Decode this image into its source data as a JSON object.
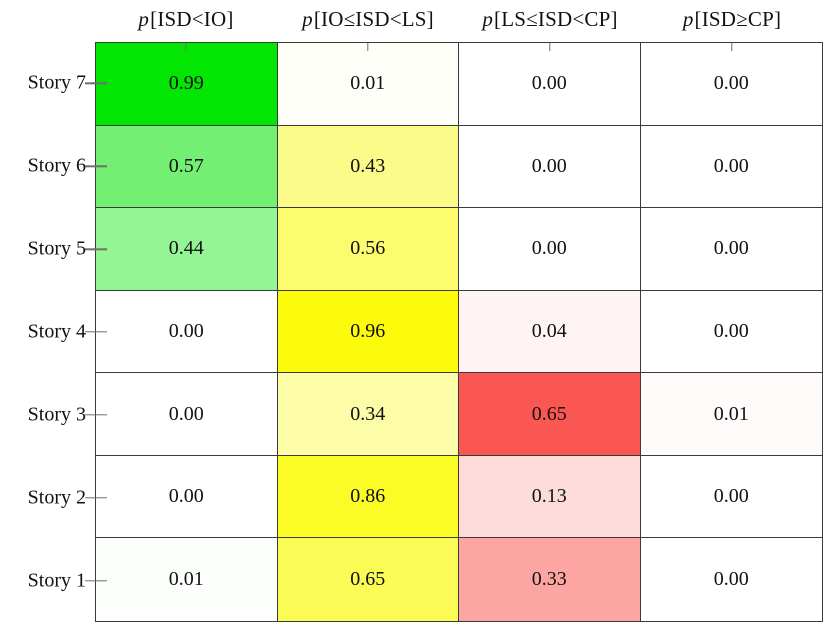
{
  "figure": {
    "background": "#ffffff",
    "grid_line_color": "#3a3a3a",
    "tick_color": "#6f6f6f",
    "text_color": "#111111"
  },
  "chart_data": {
    "type": "heatmap",
    "title": "",
    "columns": [
      {
        "var": "p",
        "condition": "[ISD<IO]"
      },
      {
        "var": "p",
        "condition": "[IO≤ISD<LS]"
      },
      {
        "var": "p",
        "condition": "[LS≤ISD<CP]"
      },
      {
        "var": "p",
        "condition": "[ISD≥CP]"
      }
    ],
    "rows": [
      "Story 7",
      "Story 6",
      "Story 5",
      "Story 4",
      "Story 3",
      "Story 2",
      "Story 1"
    ],
    "values": [
      [
        0.99,
        0.01,
        0.0,
        0.0
      ],
      [
        0.57,
        0.43,
        0.0,
        0.0
      ],
      [
        0.44,
        0.56,
        0.0,
        0.0
      ],
      [
        0.0,
        0.96,
        0.04,
        0.0
      ],
      [
        0.0,
        0.34,
        0.65,
        0.01
      ],
      [
        0.0,
        0.86,
        0.13,
        0.0
      ],
      [
        0.01,
        0.65,
        0.33,
        0.0
      ]
    ],
    "display": [
      [
        "0.99",
        "0.01",
        "0.00",
        "0.00"
      ],
      [
        "0.57",
        "0.43",
        "0.00",
        "0.00"
      ],
      [
        "0.44",
        "0.56",
        "0.00",
        "0.00"
      ],
      [
        "0.00",
        "0.96",
        "0.04",
        "0.00"
      ],
      [
        "0.00",
        "0.34",
        "0.65",
        "0.01"
      ],
      [
        "0.00",
        "0.86",
        "0.13",
        "0.00"
      ],
      [
        "0.01",
        "0.65",
        "0.33",
        "0.00"
      ]
    ],
    "cell_colors": [
      [
        "#03E503",
        "#FFFFFA",
        "#FFFFFF",
        "#FFFFFF"
      ],
      [
        "#73F073",
        "#FBFB89",
        "#FFFFFF",
        "#FFFFFF"
      ],
      [
        "#94F594",
        "#FCFC6E",
        "#FFFFFF",
        "#FFFFFF"
      ],
      [
        "#FFFFFF",
        "#FBFB0B",
        "#FEF4F3",
        "#FFFFFF"
      ],
      [
        "#FFFFFF",
        "#FDFDA8",
        "#FA5752",
        "#FFFBFB"
      ],
      [
        "#FFFFFF",
        "#FBFB26",
        "#FDDBDB",
        "#FFFFFF"
      ],
      [
        "#FBFEFB",
        "#FBFB55",
        "#FCA5A3",
        "#FFFFFF"
      ]
    ],
    "column_color_scales": [
      "white-to-green",
      "white-to-yellow",
      "white-to-red",
      "white-to-red"
    ],
    "value_range": [
      0,
      1
    ],
    "layout": {
      "grid": "cell-borders",
      "ticks_top": true,
      "ticks_left": true,
      "legend": "none"
    }
  }
}
